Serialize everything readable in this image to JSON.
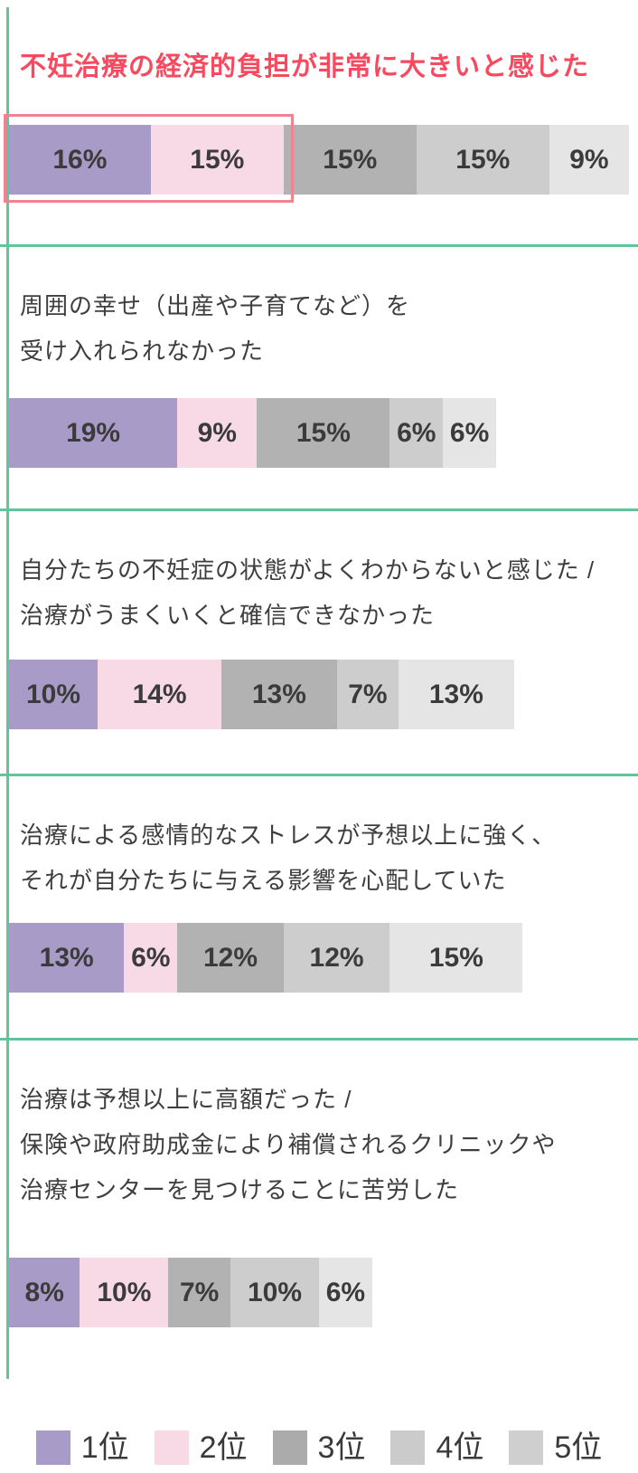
{
  "page": {
    "background": "#ffffff"
  },
  "colors": {
    "accent_green": "#62c49b",
    "title_red": "#f8495f",
    "highlight_border": "#f0838f",
    "question_text": "#3e3e3e",
    "percent_label": "#3b3b3b",
    "ranks": [
      "#a99bc8",
      "#f8d9e6",
      "#b2b2b2",
      "#cdcdcd",
      "#e5e5e5"
    ],
    "legend_swatches": [
      "#a99bc8",
      "#f8d9e6",
      "#ababab",
      "#cbcbcb",
      "#cfcfcf"
    ]
  },
  "chart_data": {
    "type": "bar",
    "orientation": "horizontal-stacked",
    "unit": "%",
    "legend_position": "bottom",
    "legend": [
      "1位",
      "2位",
      "3位",
      "4位",
      "5位"
    ],
    "items": [
      {
        "label": "不妊治療の経済的負担が非常に大きいと感じた",
        "lines": [
          "不妊治療の経済的負担が非常に大きいと感じた"
        ],
        "values": [
          16,
          15,
          15,
          15,
          9
        ],
        "total": 70,
        "highlighted": true,
        "highlight_note": "title in red, top-2 segments outlined in pink"
      },
      {
        "label": "周囲の幸せ（出産や子育てなど）を受け入れられなかった",
        "lines": [
          "周囲の幸せ（出産や子育てなど）を",
          "受け入れられなかった"
        ],
        "values": [
          19,
          9,
          15,
          6,
          6
        ],
        "total": 55,
        "highlighted": false
      },
      {
        "label": "自分たちの不妊症の状態がよくわからないと感じた / 治療がうまくいくと確信できなかった",
        "lines": [
          "自分たちの不妊症の状態がよくわからないと感じた /",
          "治療がうまくいくと確信できなかった"
        ],
        "values": [
          10,
          14,
          13,
          7,
          13
        ],
        "total": 57,
        "highlighted": false
      },
      {
        "label": "治療による感情的なストレスが予想以上に強く、それが自分たちに与える影響を心配していた",
        "lines": [
          "治療による感情的なストレスが予想以上に強く、",
          "それが自分たちに与える影響を心配していた"
        ],
        "values": [
          13,
          6,
          12,
          12,
          15
        ],
        "total": 58,
        "highlighted": false
      },
      {
        "label": "治療は予想以上に高額だった / 保険や政府助成金により補償されるクリニックや治療センターを見つけることに苦労した",
        "lines": [
          "治療は予想以上に高額だった /",
          "保険や政府助成金により補償されるクリニックや",
          "治療センターを見つけることに苦労した"
        ],
        "values": [
          8,
          10,
          7,
          10,
          6
        ],
        "total": 41,
        "highlighted": false
      }
    ]
  },
  "legend": {
    "items": [
      {
        "label": "1位"
      },
      {
        "label": "2位"
      },
      {
        "label": "3位"
      },
      {
        "label": "4位"
      },
      {
        "label": "5位"
      }
    ]
  }
}
